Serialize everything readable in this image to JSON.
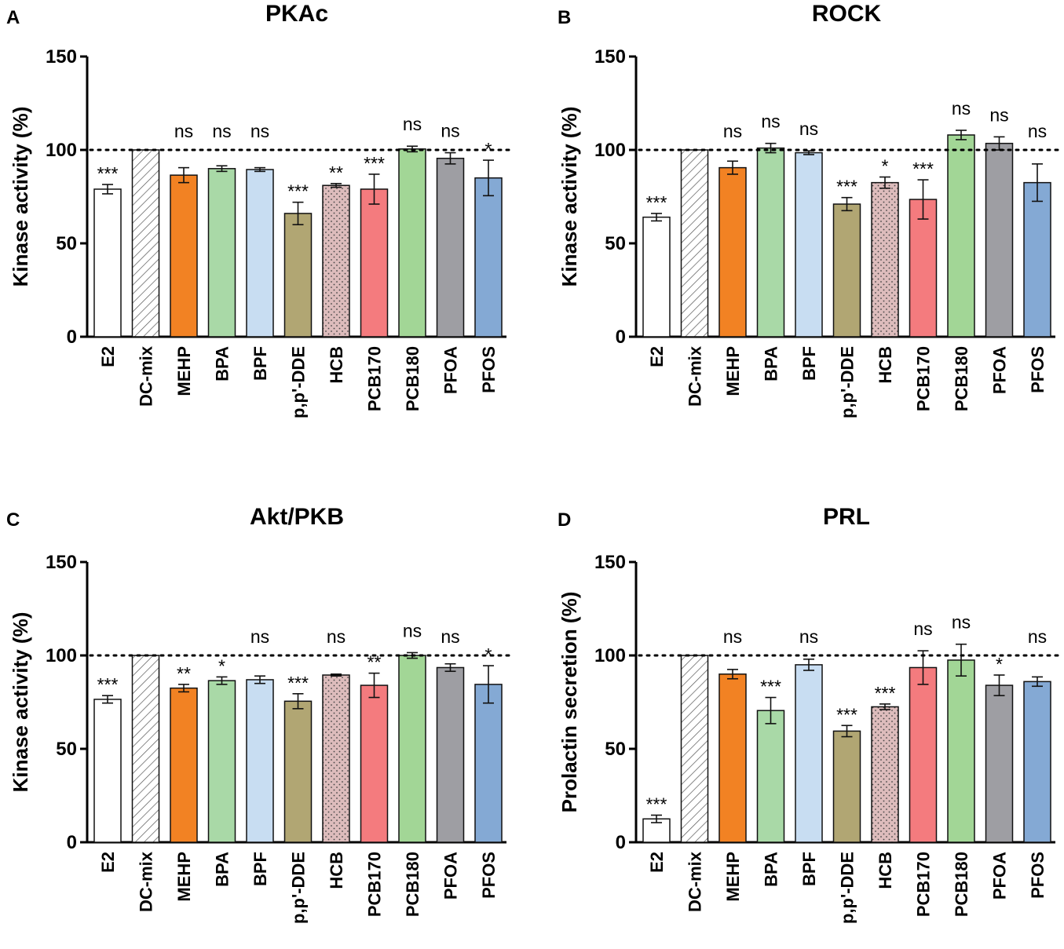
{
  "chart_data": [
    {
      "type": "bar",
      "panel": "A",
      "title": "PKAc",
      "ylabel": "Kinase activity (%)",
      "ylim": [
        0,
        150
      ],
      "yticks": [
        0,
        50,
        100,
        150
      ],
      "reference_line": 100,
      "categories": [
        "E2",
        "DC-mix",
        "MEHP",
        "BPA",
        "BPF",
        "p,p'-DDE",
        "HCB",
        "PCB170",
        "PCB180",
        "PFOA",
        "PFOS"
      ],
      "values": [
        79,
        100,
        86.5,
        90,
        89.5,
        66,
        81,
        79,
        100.5,
        95.5,
        85
      ],
      "errors": [
        2.5,
        0,
        4,
        1.5,
        1,
        6,
        1,
        8,
        1.5,
        3,
        9.5
      ],
      "significance": [
        "***",
        "",
        "ns",
        "ns",
        "ns",
        "***",
        "**",
        "***",
        "ns",
        "ns",
        "*"
      ]
    },
    {
      "type": "bar",
      "panel": "B",
      "title": "ROCK",
      "ylabel": "Kinase activity (%)",
      "ylim": [
        0,
        150
      ],
      "yticks": [
        0,
        50,
        100,
        150
      ],
      "reference_line": 100,
      "categories": [
        "E2",
        "DC-mix",
        "MEHP",
        "BPA",
        "BPF",
        "p,p'-DDE",
        "HCB",
        "PCB170",
        "PCB180",
        "PFOA",
        "PFOS"
      ],
      "values": [
        64,
        100,
        90.5,
        101,
        98.5,
        71,
        82.5,
        73.5,
        108,
        103.5,
        82.5
      ],
      "errors": [
        2,
        0,
        3.5,
        2.5,
        1,
        3.5,
        3,
        10.5,
        2.5,
        3.5,
        10
      ],
      "significance": [
        "***",
        "",
        "ns",
        "ns",
        "ns",
        "***",
        "*",
        "***",
        "ns",
        "ns",
        "ns"
      ]
    },
    {
      "type": "bar",
      "panel": "C",
      "title": "Akt/PKB",
      "ylabel": "Kinase activity (%)",
      "ylim": [
        0,
        150
      ],
      "yticks": [
        0,
        50,
        100,
        150
      ],
      "reference_line": 100,
      "categories": [
        "E2",
        "DC-mix",
        "MEHP",
        "BPA",
        "BPF",
        "p,p'-DDE",
        "HCB",
        "PCB170",
        "PCB180",
        "PFOA",
        "PFOS"
      ],
      "values": [
        76.5,
        100,
        82.5,
        86.5,
        87,
        75.5,
        89.5,
        84,
        100,
        93.5,
        84.5
      ],
      "errors": [
        2,
        0,
        2,
        2,
        2,
        4,
        0.5,
        6.5,
        1.5,
        2,
        10
      ],
      "significance": [
        "***",
        "",
        "**",
        "*",
        "ns",
        "***",
        "ns",
        "**",
        "ns",
        "ns",
        "*"
      ]
    },
    {
      "type": "bar",
      "panel": "D",
      "title": "PRL",
      "ylabel": "Prolactin secretion (%)",
      "ylim": [
        0,
        150
      ],
      "yticks": [
        0,
        50,
        100,
        150
      ],
      "reference_line": 100,
      "categories": [
        "E2",
        "DC-mix",
        "MEHP",
        "BPA",
        "BPF",
        "p,p'-DDE",
        "HCB",
        "PCB170",
        "PCB180",
        "PFOA",
        "PFOS"
      ],
      "values": [
        12.5,
        100,
        90,
        70.5,
        95,
        59.5,
        72.5,
        93.5,
        97.5,
        84,
        86
      ],
      "errors": [
        2,
        0,
        2.5,
        7,
        3,
        3,
        1.5,
        9,
        8.5,
        5.5,
        2.5
      ],
      "significance": [
        "***",
        "",
        "ns",
        "***",
        "ns",
        "***",
        "***",
        "ns",
        "ns",
        "*",
        "ns"
      ]
    }
  ],
  "bar_styles": [
    {
      "fill": "#ffffff",
      "pattern": "none"
    },
    {
      "fill": "#ffffff",
      "pattern": "hatch"
    },
    {
      "fill": "#f28223",
      "pattern": "none"
    },
    {
      "fill": "#a9d9a7",
      "pattern": "none"
    },
    {
      "fill": "#c8ddf2",
      "pattern": "none"
    },
    {
      "fill": "#b1a673",
      "pattern": "none"
    },
    {
      "fill": "#ddbcbc",
      "pattern": "dots"
    },
    {
      "fill": "#f47b7e",
      "pattern": "none"
    },
    {
      "fill": "#a2d696",
      "pattern": "none"
    },
    {
      "fill": "#9e9ea3",
      "pattern": "none"
    },
    {
      "fill": "#84a9d4",
      "pattern": "none"
    }
  ]
}
